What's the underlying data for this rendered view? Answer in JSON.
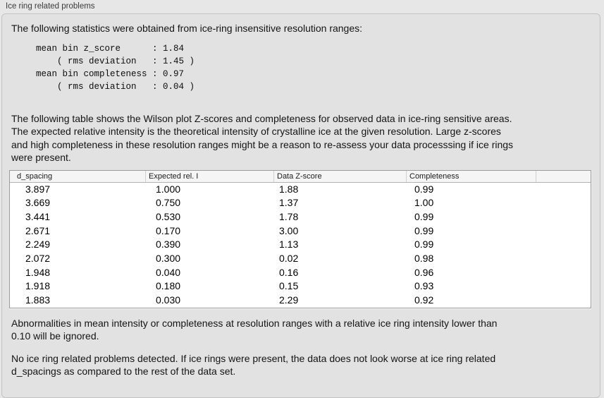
{
  "panel": {
    "title": "Ice ring related problems"
  },
  "sections": {
    "stats_intro": "The following statistics were obtained from ice-ring insensitive resolution ranges:",
    "stats_block": "mean bin z_score      : 1.84\n    ( rms deviation   : 1.45 )\nmean bin completeness : 0.97\n    ( rms deviation   : 0.04 )",
    "table_intro": "The following table shows the Wilson plot Z-scores and completeness for observed data in ice-ring sensitive areas.\nThe expected relative intensity is the theoretical intensity of crystalline ice at the given resolution. Large z-scores\nand high completeness in these resolution ranges might be a reason to re-assess your data processsing if ice rings\nwere present.",
    "ignore_note": "Abnormalities in mean intensity or completeness at resolution ranges with a relative ice ring intensity lower than\n0.10 will be ignored.",
    "conclusion": "No ice ring related problems detected. If ice rings were present, the data does not look worse at ice ring related\nd_spacings as compared to the rest of the data set."
  },
  "table": {
    "headers": [
      "d_spacing",
      "Expected rel. I",
      "Data Z-score",
      "Completeness",
      ""
    ],
    "rows": [
      [
        "3.897",
        "1.000",
        "1.88",
        "0.99"
      ],
      [
        "3.669",
        "0.750",
        "1.37",
        "1.00"
      ],
      [
        "3.441",
        "0.530",
        "1.78",
        "0.99"
      ],
      [
        "2.671",
        "0.170",
        "3.00",
        "0.99"
      ],
      [
        "2.249",
        "0.390",
        "1.13",
        "0.99"
      ],
      [
        "2.072",
        "0.300",
        "0.02",
        "0.98"
      ],
      [
        "1.948",
        "0.040",
        "0.16",
        "0.96"
      ],
      [
        "1.918",
        "0.180",
        "0.15",
        "0.93"
      ],
      [
        "1.883",
        "0.030",
        "2.29",
        "0.92"
      ]
    ]
  },
  "colors": {
    "page_background": "#e7e7e7",
    "panel_background": "#e2e2e2",
    "panel_border": "#c3c3c3",
    "table_background": "#ffffff",
    "table_border": "#9b9b9b",
    "header_background": "#f5f5f5",
    "text": "#141414"
  }
}
